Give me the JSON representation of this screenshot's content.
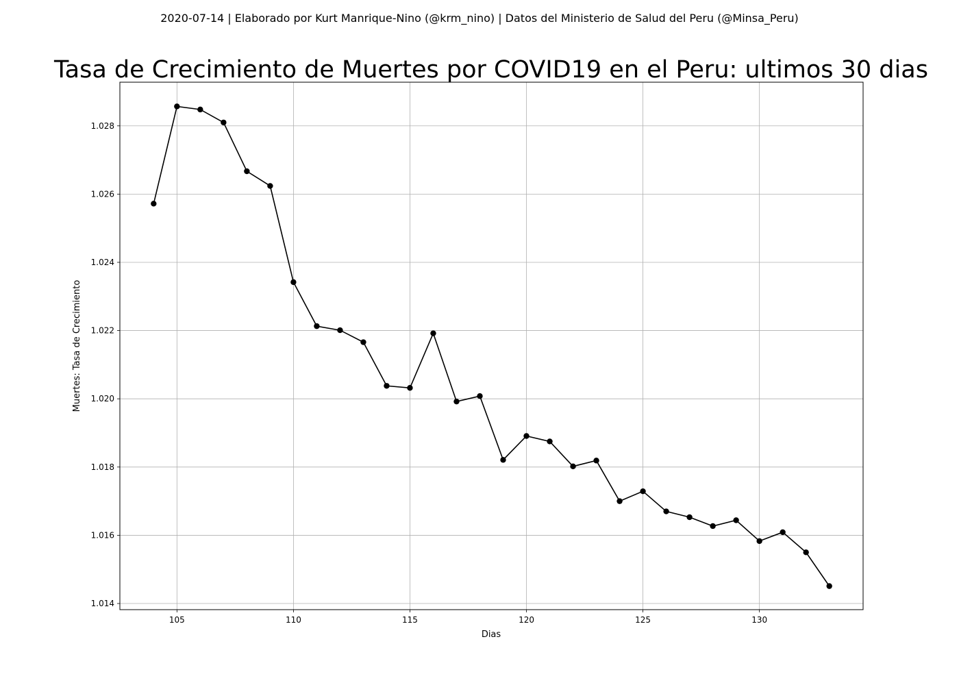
{
  "header": {
    "suptitle": "2020-07-14 | Elaborado por Kurt Manrique-Nino (@krm_nino) | Datos del Ministerio de Salud del Peru (@Minsa_Peru)"
  },
  "chart_data": {
    "type": "line",
    "title": "Tasa de Crecimiento de Muertes por COVID19 en el Peru: ultimos 30 dias",
    "xlabel": "Dias",
    "ylabel": "Muertes: Tasa de Crecimiento",
    "xlim": [
      102.55,
      134.45
    ],
    "ylim": [
      1.01382,
      1.02928
    ],
    "xticks": [
      105,
      110,
      115,
      120,
      125,
      130
    ],
    "xtick_labels": [
      "105",
      "110",
      "115",
      "120",
      "125",
      "130"
    ],
    "yticks": [
      1.014,
      1.016,
      1.018,
      1.02,
      1.022,
      1.024,
      1.026,
      1.028
    ],
    "ytick_labels": [
      "1.014",
      "1.016",
      "1.018",
      "1.020",
      "1.022",
      "1.024",
      "1.026",
      "1.028"
    ],
    "grid": true,
    "line_color": "#000000",
    "marker": "circle",
    "series": [
      {
        "x": [
          104,
          105,
          106,
          107,
          108,
          109,
          110,
          111,
          112,
          113,
          114,
          115,
          116,
          117,
          118,
          119,
          120,
          121,
          122,
          123,
          124,
          125,
          126,
          127,
          128,
          129,
          130,
          131,
          132,
          133
        ],
        "y": [
          1.02572,
          1.02857,
          1.02848,
          1.0281,
          1.02667,
          1.02624,
          1.02342,
          1.02213,
          1.02201,
          1.02166,
          1.02038,
          1.02032,
          1.02192,
          1.01992,
          1.02008,
          1.01821,
          1.01891,
          1.01875,
          1.01802,
          1.01819,
          1.017,
          1.01729,
          1.0167,
          1.01653,
          1.01627,
          1.01644,
          1.01583,
          1.01609,
          1.0155,
          1.01451
        ]
      }
    ]
  }
}
